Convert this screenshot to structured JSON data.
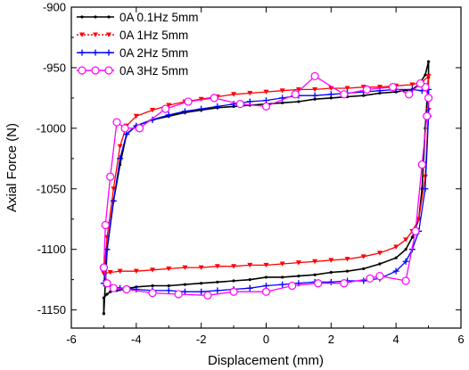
{
  "chart_data": {
    "type": "line",
    "xlabel": "Displacement (mm)",
    "ylabel": "Axial Force (N)",
    "xlim": [
      -6,
      6
    ],
    "ylim": [
      -1165,
      -900
    ],
    "xticks": [
      -6,
      -4,
      -2,
      0,
      2,
      4,
      6
    ],
    "yticks": [
      -900,
      -950,
      -1000,
      -1050,
      -1100,
      -1150
    ],
    "xtick_labels": [
      "-6",
      "-4",
      "-2",
      "0",
      "2",
      "4",
      "6"
    ],
    "ytick_labels": [
      "-900",
      "-950",
      "-1000",
      "-1050",
      "-1100",
      "-1150"
    ],
    "grid": false,
    "legend_position": "top-left",
    "series": [
      {
        "name": "0A  0.1Hz 5mm",
        "color": "#000000",
        "marker": "dot",
        "x": [
          -5.0,
          -5.0,
          -4.9,
          -4.8,
          -4.6,
          -4.4,
          -4.2,
          -4.0,
          -3.5,
          -3.0,
          -2.5,
          -2.0,
          -1.5,
          -1.0,
          -0.5,
          0.0,
          0.5,
          1.0,
          1.5,
          2.0,
          2.5,
          3.0,
          3.5,
          4.0,
          4.3,
          4.5,
          4.7,
          4.8,
          4.9,
          5.0,
          5.0,
          4.9,
          4.7,
          4.5,
          4.0,
          3.5,
          3.0,
          2.5,
          2.0,
          1.5,
          1.0,
          0.5,
          0.0,
          -0.5,
          -1.0,
          -1.5,
          -2.0,
          -2.5,
          -3.0,
          -3.5,
          -4.0,
          -4.3,
          -4.5,
          -4.7,
          -4.9,
          -5.0
        ],
        "y": [
          -1153,
          -1140,
          -1137,
          -1135,
          -1134,
          -1133,
          -1132,
          -1131,
          -1130,
          -1130,
          -1129,
          -1128,
          -1127,
          -1126,
          -1125,
          -1123,
          -1123,
          -1122,
          -1121,
          -1119,
          -1118,
          -1116,
          -1112,
          -1107,
          -1100,
          -1090,
          -1075,
          -1050,
          -1000,
          -958,
          -945,
          -956,
          -964,
          -968,
          -970,
          -971,
          -973,
          -974,
          -975,
          -976,
          -978,
          -979,
          -980,
          -981,
          -982,
          -983,
          -985,
          -987,
          -990,
          -993,
          -998,
          -1005,
          -1030,
          -1060,
          -1100,
          -1153
        ]
      },
      {
        "name": "0A  1Hz 5mm",
        "color": "#ff0000",
        "marker": "triangle-down",
        "x": [
          -5.0,
          -4.8,
          -4.5,
          -4.0,
          -3.5,
          -3.0,
          -2.5,
          -2.0,
          -1.5,
          -1.0,
          -0.5,
          0.0,
          0.5,
          1.0,
          1.5,
          2.0,
          2.5,
          3.0,
          3.5,
          4.0,
          4.3,
          4.5,
          4.7,
          4.9,
          5.0,
          5.0,
          4.8,
          4.5,
          4.0,
          3.5,
          3.0,
          2.5,
          2.0,
          1.5,
          1.0,
          0.5,
          0.0,
          -0.5,
          -1.0,
          -1.5,
          -2.0,
          -2.5,
          -3.0,
          -3.5,
          -4.0,
          -4.3,
          -4.5,
          -4.7,
          -4.9,
          -5.0
        ],
        "y": [
          -1120,
          -1119,
          -1118,
          -1118,
          -1117,
          -1116,
          -1115,
          -1115,
          -1114,
          -1114,
          -1113,
          -1113,
          -1112,
          -1111,
          -1110,
          -1109,
          -1108,
          -1106,
          -1103,
          -1098,
          -1092,
          -1085,
          -1075,
          -1040,
          -985,
          -957,
          -962,
          -964,
          -965,
          -966,
          -966,
          -967,
          -967,
          -968,
          -968,
          -969,
          -970,
          -971,
          -972,
          -974,
          -976,
          -978,
          -981,
          -985,
          -990,
          -998,
          -1015,
          -1050,
          -1090,
          -1120
        ]
      },
      {
        "name": "0A  2Hz 5mm",
        "color": "#0000ff",
        "marker": "plus",
        "x": [
          -5.0,
          -4.8,
          -4.5,
          -4.0,
          -3.5,
          -3.0,
          -2.5,
          -2.0,
          -1.5,
          -1.0,
          -0.5,
          0.0,
          0.5,
          1.0,
          1.5,
          2.0,
          2.5,
          3.0,
          3.5,
          4.0,
          4.3,
          4.5,
          4.7,
          4.9,
          5.0,
          5.0,
          4.8,
          4.5,
          4.0,
          3.5,
          3.0,
          2.5,
          2.0,
          1.5,
          1.0,
          0.5,
          0.0,
          -0.5,
          -1.0,
          -1.5,
          -2.0,
          -2.5,
          -3.0,
          -3.5,
          -4.0,
          -4.3,
          -4.5,
          -4.7,
          -4.9,
          -5.0
        ],
        "y": [
          -1128,
          -1130,
          -1132,
          -1133,
          -1134,
          -1134,
          -1135,
          -1135,
          -1134,
          -1133,
          -1132,
          -1130,
          -1129,
          -1128,
          -1127,
          -1127,
          -1126,
          -1126,
          -1124,
          -1118,
          -1110,
          -1100,
          -1085,
          -1050,
          -990,
          -968,
          -969,
          -968,
          -968,
          -969,
          -970,
          -971,
          -972,
          -973,
          -973,
          -975,
          -977,
          -978,
          -980,
          -982,
          -984,
          -986,
          -989,
          -993,
          -998,
          -1005,
          -1025,
          -1060,
          -1100,
          -1128
        ]
      },
      {
        "name": "0A  3Hz 5mm",
        "color": "#ff00ff",
        "marker": "circle",
        "x": [
          -5.0,
          -4.9,
          -4.7,
          -4.3,
          -3.5,
          -2.7,
          -1.8,
          -1.0,
          0.0,
          0.8,
          1.6,
          2.4,
          3.2,
          3.5,
          4.3,
          4.6,
          4.8,
          4.95,
          5.0,
          4.9,
          4.75,
          4.4,
          3.9,
          3.1,
          2.4,
          1.5,
          0.9,
          0.0,
          -0.8,
          -1.6,
          -2.4,
          -3.1,
          -3.9,
          -4.35,
          -4.6,
          -4.8,
          -4.95,
          -5.0
        ],
        "y": [
          -1115,
          -1128,
          -1132,
          -1133,
          -1136,
          -1137,
          -1138,
          -1135,
          -1135,
          -1130,
          -1128,
          -1128,
          -1124,
          -1122,
          -1126,
          -1085,
          -1030,
          -990,
          -975,
          -966,
          -963,
          -972,
          -966,
          -968,
          -972,
          -957,
          -972,
          -982,
          -980,
          -975,
          -978,
          -984,
          -1000,
          -1000,
          -995,
          -1040,
          -1080,
          -1115
        ]
      }
    ]
  }
}
